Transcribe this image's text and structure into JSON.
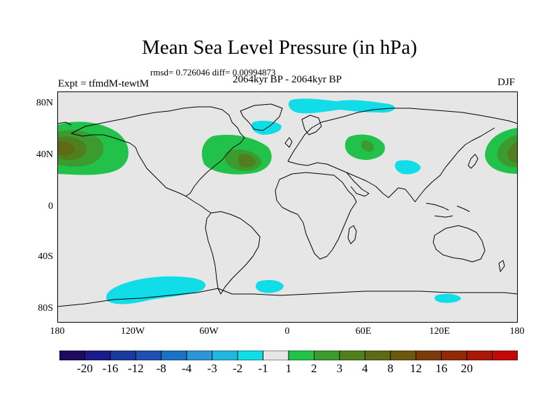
{
  "title": "Mean Sea Level Pressure (in hPa)",
  "stats": "rmsd= 0.726046 diff= 0.00994873",
  "period": "2064kyr BP - 2064kyr BP",
  "experiment": "Expt = tfmdM-tewtM",
  "season": "DJF",
  "y_axis_ticks": [
    "80N",
    "40N",
    "0",
    "40S",
    "80S"
  ],
  "x_axis_ticks": [
    "180",
    "120W",
    "60W",
    "0",
    "60E",
    "120E",
    "180"
  ],
  "colorbar": {
    "colors": [
      "#1c0b5e",
      "#1c1b8a",
      "#1b3a9e",
      "#1f4fb2",
      "#1b72c4",
      "#2a96d6",
      "#20b8e0",
      "#10dde8",
      "#e6e6e6",
      "#22c24a",
      "#3c9b2e",
      "#4f7f1e",
      "#5d6a16",
      "#6b5a0e",
      "#7a3d0a",
      "#8f2a08",
      "#a81808",
      "#c00808"
    ],
    "labels": [
      "-20",
      "-16",
      "-12",
      "-8",
      "-4",
      "-3",
      "-2",
      "-1",
      "1",
      "2",
      "3",
      "4",
      "8",
      "12",
      "16",
      "20"
    ]
  },
  "anomaly_regions": [
    {
      "name": "north-pacific-west-high",
      "level": "4"
    },
    {
      "name": "north-pacific-east-high",
      "level": "4"
    },
    {
      "name": "north-atlantic-high",
      "level": "3"
    },
    {
      "name": "central-asia-high",
      "level": "2"
    },
    {
      "name": "arctic-low",
      "level": "-1"
    },
    {
      "name": "greenland-sea-low",
      "level": "-1"
    },
    {
      "name": "tibet-low",
      "level": "-1"
    },
    {
      "name": "southern-pacific-low",
      "level": "-1"
    },
    {
      "name": "south-atlantic-low",
      "level": "-1"
    },
    {
      "name": "southern-ocean-east-low",
      "level": "-1"
    }
  ]
}
